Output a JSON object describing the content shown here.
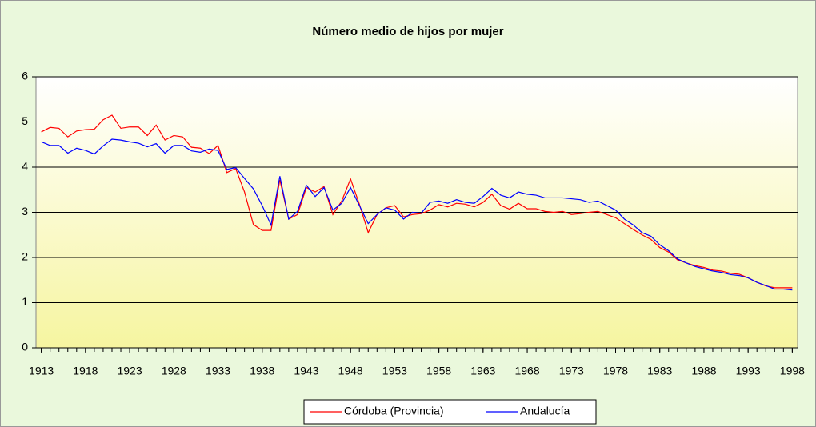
{
  "chart_data": {
    "type": "line",
    "title": "Número medio de hijos por mujer",
    "x": [
      1913,
      1914,
      1915,
      1916,
      1917,
      1918,
      1919,
      1920,
      1921,
      1922,
      1923,
      1924,
      1925,
      1926,
      1927,
      1928,
      1929,
      1930,
      1931,
      1932,
      1933,
      1934,
      1935,
      1936,
      1937,
      1938,
      1939,
      1940,
      1941,
      1942,
      1943,
      1944,
      1945,
      1946,
      1947,
      1948,
      1949,
      1950,
      1951,
      1952,
      1953,
      1954,
      1955,
      1956,
      1957,
      1958,
      1959,
      1960,
      1961,
      1962,
      1963,
      1964,
      1965,
      1966,
      1967,
      1968,
      1969,
      1970,
      1971,
      1972,
      1973,
      1974,
      1975,
      1976,
      1977,
      1978,
      1979,
      1980,
      1981,
      1982,
      1983,
      1984,
      1985,
      1986,
      1987,
      1988,
      1989,
      1990,
      1991,
      1992,
      1993,
      1994,
      1995,
      1996,
      1997,
      1998
    ],
    "series": [
      {
        "name": "Córdoba (Provincia)",
        "color": "#ff0000",
        "values": [
          4.78,
          4.88,
          4.86,
          4.67,
          4.8,
          4.83,
          4.84,
          5.05,
          5.15,
          4.86,
          4.89,
          4.89,
          4.7,
          4.93,
          4.6,
          4.7,
          4.67,
          4.44,
          4.42,
          4.3,
          4.48,
          3.88,
          3.97,
          3.45,
          2.73,
          2.6,
          2.6,
          3.72,
          2.85,
          2.95,
          3.55,
          3.45,
          3.57,
          2.95,
          3.25,
          3.74,
          3.18,
          2.55,
          2.95,
          3.1,
          3.15,
          2.9,
          2.95,
          2.97,
          3.05,
          3.17,
          3.12,
          3.2,
          3.18,
          3.12,
          3.22,
          3.4,
          3.15,
          3.07,
          3.2,
          3.08,
          3.08,
          3.02,
          3.0,
          3.02,
          2.95,
          2.97,
          3.0,
          3.02,
          2.95,
          2.88,
          2.75,
          2.62,
          2.5,
          2.4,
          2.22,
          2.12,
          1.95,
          1.88,
          1.82,
          1.78,
          1.72,
          1.7,
          1.65,
          1.63,
          1.55,
          1.45,
          1.37,
          1.33,
          1.33,
          1.33
        ]
      },
      {
        "name": "Andalucía",
        "color": "#0000ff",
        "values": [
          4.56,
          4.48,
          4.48,
          4.31,
          4.42,
          4.37,
          4.29,
          4.47,
          4.62,
          4.6,
          4.56,
          4.53,
          4.45,
          4.52,
          4.31,
          4.48,
          4.48,
          4.36,
          4.33,
          4.4,
          4.37,
          3.95,
          3.99,
          3.75,
          3.52,
          3.15,
          2.72,
          3.8,
          2.85,
          3.02,
          3.6,
          3.35,
          3.55,
          3.05,
          3.2,
          3.55,
          3.15,
          2.75,
          2.95,
          3.1,
          3.05,
          2.85,
          3.0,
          2.98,
          3.22,
          3.25,
          3.2,
          3.28,
          3.22,
          3.2,
          3.35,
          3.53,
          3.38,
          3.32,
          3.45,
          3.4,
          3.38,
          3.32,
          3.32,
          3.32,
          3.3,
          3.28,
          3.22,
          3.25,
          3.15,
          3.05,
          2.85,
          2.72,
          2.55,
          2.47,
          2.28,
          2.15,
          1.97,
          1.88,
          1.8,
          1.75,
          1.7,
          1.67,
          1.62,
          1.6,
          1.55,
          1.45,
          1.38,
          1.3,
          1.3,
          1.28
        ]
      }
    ],
    "xlim": [
      1912.4,
      1998.6
    ],
    "xticks": [
      1913,
      1918,
      1923,
      1928,
      1933,
      1938,
      1943,
      1948,
      1953,
      1958,
      1963,
      1968,
      1973,
      1978,
      1983,
      1988,
      1993,
      1998
    ],
    "ylim": [
      0,
      6
    ],
    "yticks": [
      0,
      1,
      2,
      3,
      4,
      5,
      6
    ],
    "grid": true,
    "legend": "bottom"
  }
}
